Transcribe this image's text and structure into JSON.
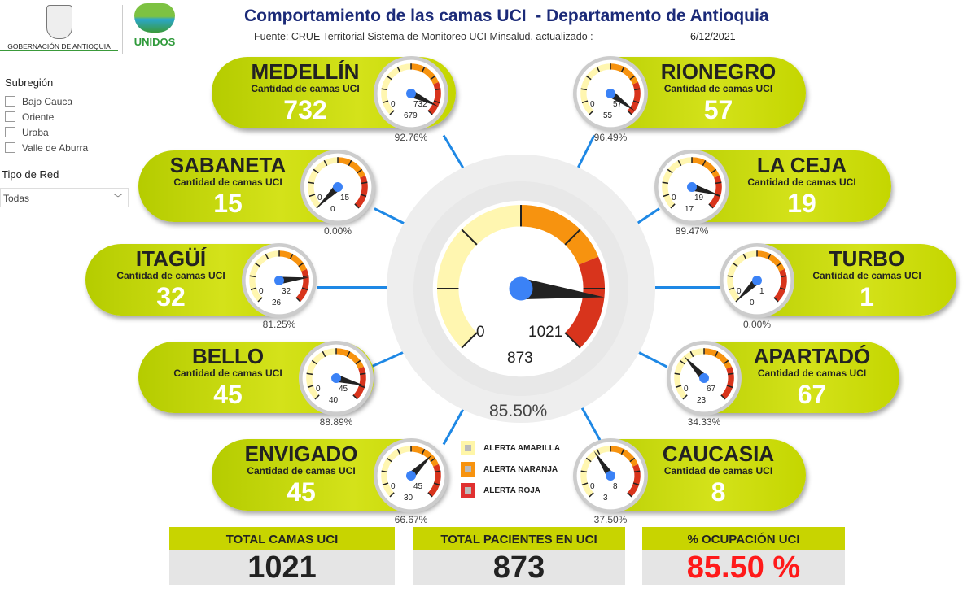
{
  "header": {
    "org": "GOBERNACIÓN DE ANTIOQUIA",
    "brand": "UNIDOS",
    "title": "Comportamiento de las camas UCI  - Departamento de Antioquia",
    "source": "Fuente: CRUE Territorial Sistema de Monitoreo UCI Minsalud, actualizado :",
    "date": "6/12/2021"
  },
  "filters": {
    "subregion_label": "Subregión",
    "subregions": [
      "Bajo Cauca",
      "Oriente",
      "Uraba",
      "Valle de Aburra"
    ],
    "red_label": "Tipo de Red",
    "red_value": "Todas"
  },
  "subtitle": "Cantidad de camas UCI",
  "cities": [
    {
      "name": "MEDELLÍN",
      "total": 732,
      "occupied": 679,
      "pct": "92.76%"
    },
    {
      "name": "SABANETA",
      "total": 15,
      "occupied": 0,
      "pct": "0.00%"
    },
    {
      "name": "ITAGÜÍ",
      "total": 32,
      "occupied": 26,
      "pct": "81.25%"
    },
    {
      "name": "BELLO",
      "total": 45,
      "occupied": 40,
      "pct": "88.89%"
    },
    {
      "name": "ENVIGADO",
      "total": 45,
      "occupied": 30,
      "pct": "66.67%"
    },
    {
      "name": "RIONEGRO",
      "total": 57,
      "occupied": 55,
      "pct": "96.49%"
    },
    {
      "name": "LA CEJA",
      "total": 19,
      "occupied": 17,
      "pct": "89.47%"
    },
    {
      "name": "TURBO",
      "total": 1,
      "occupied": 0,
      "pct": "0.00%"
    },
    {
      "name": "APARTADÓ",
      "total": 67,
      "occupied": 23,
      "pct": "34.33%"
    },
    {
      "name": "CAUCASIA",
      "total": 8,
      "occupied": 3,
      "pct": "37.50%"
    }
  ],
  "center": {
    "min": 0,
    "max": 1021,
    "value": 873,
    "pct": "85.50%"
  },
  "legend": [
    {
      "label": "ALERTA AMARILLA",
      "color": "#fff6a8"
    },
    {
      "label": "ALERTA NARANJA",
      "color": "#f7930f"
    },
    {
      "label": "ALERTA ROJA",
      "color": "#e03030"
    }
  ],
  "totals": [
    {
      "label": "TOTAL CAMAS UCI",
      "value": "1021",
      "color": "#222222"
    },
    {
      "label": "TOTAL PACIENTES EN UCI",
      "value": "873",
      "color": "#222222"
    },
    {
      "label": "% OCUPACIÓN UCI",
      "value": "85.50 %",
      "color": "#ff1a1a"
    }
  ],
  "colors": {
    "yellow": "#fff6b0",
    "orange": "#f7930f",
    "red": "#d8341c",
    "needle": "#222222",
    "hub": "#3b82f6"
  }
}
